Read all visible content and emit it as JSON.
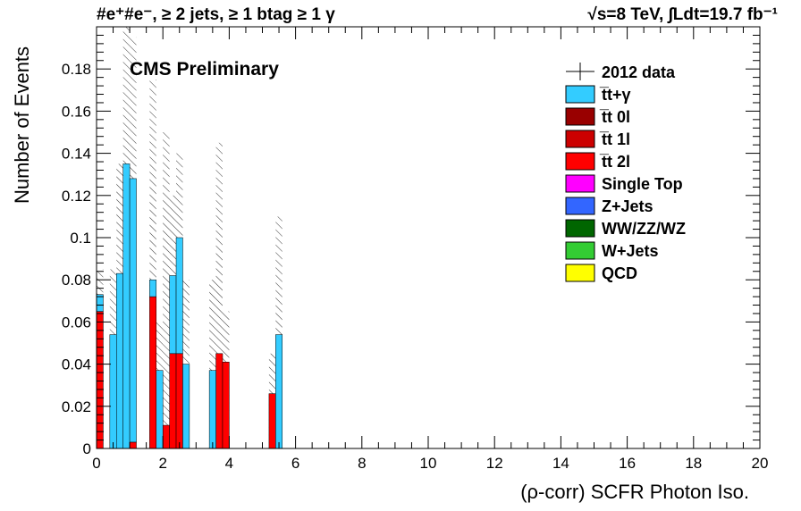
{
  "header": {
    "left": "#e⁺#e⁻, ≥ 2 jets, ≥ 1 btag ≥ 1 γ",
    "right": "√s=8 TeV,  ∫Ldt=19.7 fb⁻¹"
  },
  "experiment_label": "CMS Preliminary",
  "chart_data": {
    "type": "bar",
    "stacked": true,
    "xlabel": "(ρ-corr) SCFR Photon Iso.",
    "ylabel": "Number of Events",
    "xlim": [
      0,
      20
    ],
    "ylim": [
      0,
      0.2
    ],
    "x_ticks": [
      "0",
      "2",
      "4",
      "6",
      "8",
      "10",
      "12",
      "14",
      "16",
      "18",
      "20"
    ],
    "y_ticks": [
      "0",
      "0.02",
      "0.04",
      "0.06",
      "0.08",
      "0.1",
      "0.12",
      "0.14",
      "0.16",
      "0.18"
    ],
    "bin_width": 0.2,
    "bins": [
      0.0,
      0.2,
      0.4,
      0.6,
      0.8,
      1.0,
      1.4,
      1.6,
      1.8,
      2.0,
      2.2,
      2.4,
      2.6,
      3.4,
      3.6,
      3.8,
      5.2,
      5.4
    ],
    "series": [
      {
        "name": "t̅t 2l",
        "color": "#ff0000",
        "values": [
          0.065,
          0.0,
          0.0,
          0.0,
          0.0,
          0.003,
          0.0,
          0.072,
          0.0,
          0.011,
          0.045,
          0.045,
          0.0,
          0.0,
          0.045,
          0.041,
          0.026,
          0.0
        ]
      },
      {
        "name": "tt̅+γ",
        "color": "#33ccff",
        "values": [
          0.008,
          0.0,
          0.054,
          0.083,
          0.135,
          0.125,
          0.0,
          0.008,
          0.037,
          0.0,
          0.037,
          0.055,
          0.04,
          0.037,
          0.0,
          0.0,
          0.0,
          0.054
        ]
      }
    ],
    "uncertainty_top": [
      0.085,
      0.0,
      0.085,
      0.135,
      0.2,
      0.195,
      0.0,
      0.175,
      0.06,
      0.15,
      0.12,
      0.14,
      0.08,
      0.08,
      0.145,
      0.065,
      0.045,
      0.11
    ],
    "legend": {
      "placement": "top-right",
      "entries": [
        {
          "label": "2012 data",
          "marker": "cross",
          "color": "#000000"
        },
        {
          "label": "t̅t+γ",
          "color": "#33ccff"
        },
        {
          "label": "t̅t 0l",
          "color": "#990000"
        },
        {
          "label": "t̅t 1l",
          "color": "#cc0000"
        },
        {
          "label": "t̅t 2l",
          "color": "#ff0000"
        },
        {
          "label": "Single Top",
          "color": "#ff00ff"
        },
        {
          "label": "Z+Jets",
          "color": "#3366ff"
        },
        {
          "label": "WW/ZZ/WZ",
          "color": "#006600"
        },
        {
          "label": "W+Jets",
          "color": "#33cc33"
        },
        {
          "label": "QCD",
          "color": "#ffff00"
        }
      ]
    },
    "grid": false
  }
}
